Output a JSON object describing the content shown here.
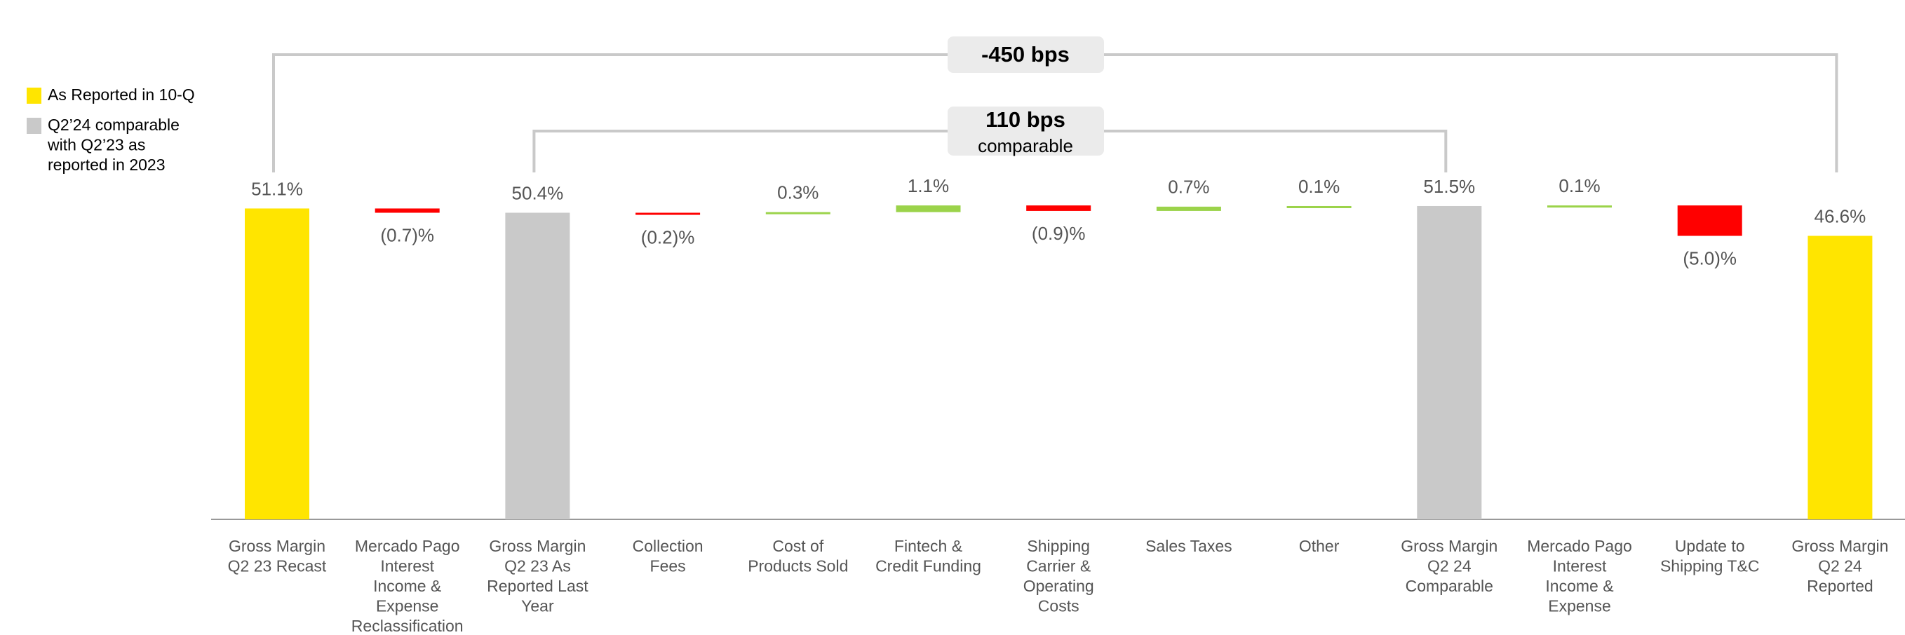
{
  "chart_data": {
    "type": "waterfall",
    "categories": [
      "Gross Margin\nQ2 23 Recast",
      "Mercado Pago\nInterest\nIncome &\nExpense\nReclassification",
      "Gross Margin\nQ2 23 As\nReported Last\nYear",
      "Collection\nFees",
      "Cost of\nProducts Sold",
      "Fintech &\nCredit Funding",
      "Shipping\nCarrier &\nOperating\nCosts",
      "Sales Taxes",
      "Other",
      "Gross Margin\nQ2 24\nComparable",
      "Mercado Pago\nInterest\nIncome &\nExpense",
      "Update to\nShipping T&C",
      "Gross Margin\nQ2 24\nReported"
    ],
    "values": [
      51.1,
      -0.7,
      50.4,
      -0.2,
      0.3,
      1.1,
      -0.9,
      0.7,
      0.1,
      51.5,
      0.1,
      -5.0,
      46.6
    ],
    "value_labels": [
      "51.1%",
      "(0.7)%",
      "50.4%",
      "(0.2)%",
      "0.3%",
      "1.1%",
      "(0.9)%",
      "0.7%",
      "0.1%",
      "51.5%",
      "0.1%",
      "(5.0)%",
      "46.6%"
    ],
    "is_total": [
      true,
      false,
      true,
      false,
      false,
      false,
      false,
      false,
      false,
      true,
      false,
      false,
      true
    ],
    "colors": [
      "#FFE500",
      "#FF0000",
      "#C9C9C9",
      "#FF0000",
      "#9BD34A",
      "#9BD34A",
      "#FF0000",
      "#9BD34A",
      "#9BD34A",
      "#C9C9C9",
      "#9BD34A",
      "#FF0000",
      "#FFE500"
    ],
    "legend": [
      {
        "label": "As Reported in 10-Q",
        "color": "#FFE500"
      },
      {
        "label": "Q2’24 comparable\nwith Q2’23 as\nreported in 2023",
        "color": "#C9C9C9"
      }
    ],
    "annotations": [
      {
        "text": "-450 bps",
        "from": 0,
        "to": 12
      },
      {
        "text": "110 bps",
        "subtext": "comparable",
        "from": 2,
        "to": 9
      }
    ]
  }
}
